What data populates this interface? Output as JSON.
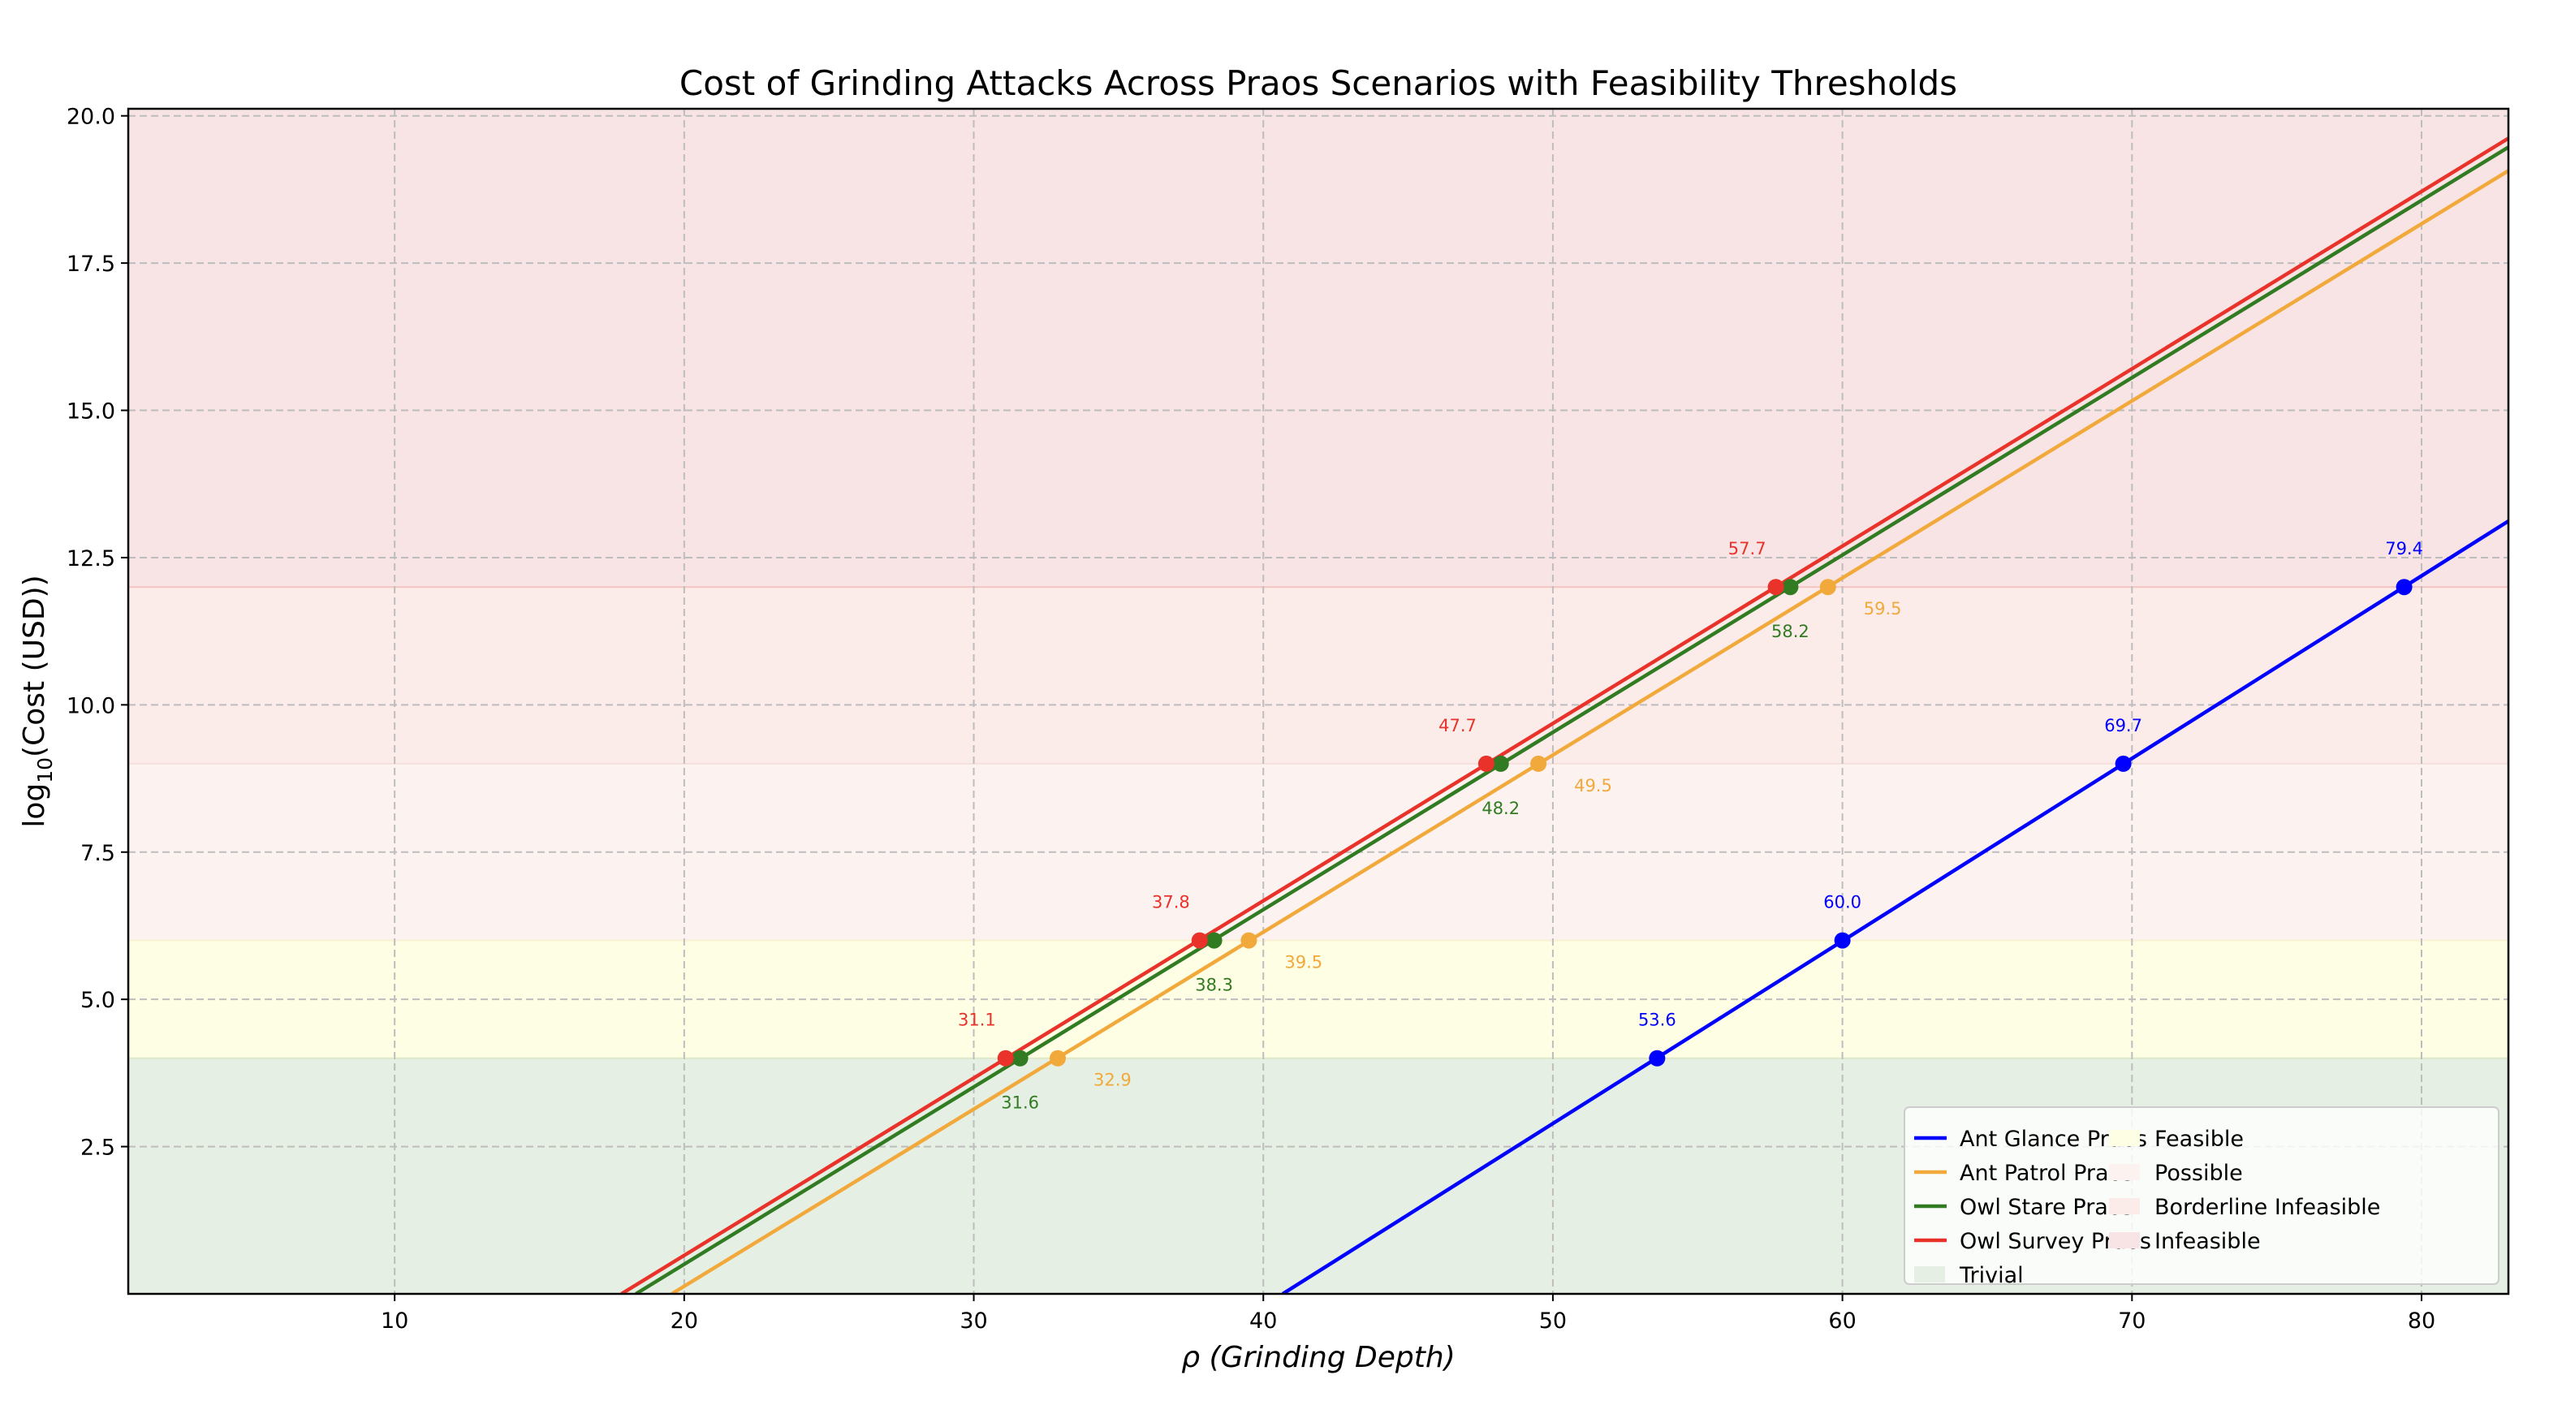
{
  "chart_data": {
    "type": "line",
    "title": "Cost of Grinding Attacks Across Praos Scenarios with Feasibility Thresholds",
    "xlabel": "ρ (Grinding Depth)",
    "ylabel_prefix": "log",
    "ylabel_sub": "10",
    "ylabel_suffix": "(Cost (USD))",
    "xlim": [
      0.8,
      83
    ],
    "ylim": [
      0,
      20.12
    ],
    "xticks": [
      10,
      20,
      30,
      40,
      50,
      60,
      70,
      80
    ],
    "xtick_labels": [
      "10",
      "20",
      "30",
      "40",
      "50",
      "60",
      "70",
      "80"
    ],
    "yticks": [
      2.5,
      5.0,
      7.5,
      10.0,
      12.5,
      15.0,
      17.5,
      20.0
    ],
    "ytick_labels": [
      "2.5",
      "5.0",
      "7.5",
      "10.0",
      "12.5",
      "15.0",
      "17.5",
      "20.0"
    ],
    "grid": true,
    "legend_position": "bottom-right",
    "thresholds_y": [
      4,
      6,
      9,
      12
    ],
    "series": [
      {
        "name": "Ant Glance Praos",
        "color": "#0000ff",
        "x": [
          53.6,
          60.0,
          69.7,
          79.4
        ],
        "y": [
          4,
          6,
          9,
          12
        ],
        "labels": [
          "53.6",
          "60.0",
          "69.7",
          "79.4"
        ]
      },
      {
        "name": "Ant Patrol Praos",
        "color": "#f2a93b",
        "x": [
          32.9,
          39.5,
          49.5,
          59.5
        ],
        "y": [
          4,
          6,
          9,
          12
        ],
        "labels": [
          "32.9",
          "39.5",
          "49.5",
          "59.5"
        ]
      },
      {
        "name": "Owl Stare Praos",
        "color": "#317b22",
        "x": [
          31.6,
          38.3,
          48.2,
          58.2
        ],
        "y": [
          4,
          6,
          9,
          12
        ],
        "labels": [
          "31.6",
          "38.3",
          "48.2",
          "58.2"
        ]
      },
      {
        "name": "Owl Survey Praos",
        "color": "#e8322a",
        "x": [
          31.1,
          37.8,
          47.7,
          57.7
        ],
        "y": [
          4,
          6,
          9,
          12
        ],
        "labels": [
          "31.1",
          "37.8",
          "47.7",
          "57.7"
        ]
      }
    ],
    "regions": [
      {
        "name": "Trivial",
        "y0": 0,
        "y1": 4,
        "color": "#e5efe3",
        "edge": "#dfe9c8"
      },
      {
        "name": "Feasible",
        "y0": 4,
        "y1": 6,
        "color": "#fefee4",
        "edge": "#f9f1d0"
      },
      {
        "name": "Possible",
        "y0": 6,
        "y1": 9,
        "color": "#fcf3f1",
        "edge": "#f5e0dc"
      },
      {
        "name": "Borderline Infeasible",
        "y0": 9,
        "y1": 12,
        "color": "#fbecea",
        "edge": "#f3c4c0"
      },
      {
        "name": "Infeasible",
        "y0": 12,
        "y1": 20.12,
        "color": "#f8e4e4",
        "edge": "#f8e4e4"
      }
    ]
  }
}
